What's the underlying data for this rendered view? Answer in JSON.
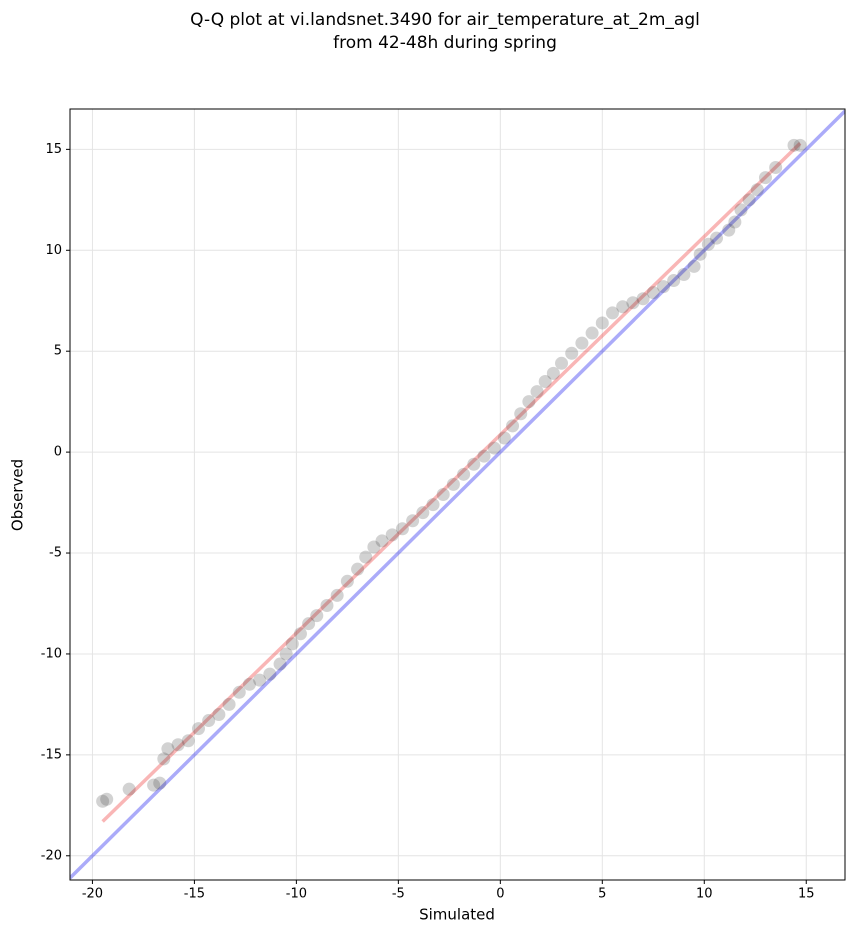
{
  "chart_data": {
    "type": "scatter",
    "title": [
      "Q-Q plot at vi.landsnet.3490 for air_temperature_at_2m_agl",
      "from 42-48h during spring"
    ],
    "x_label": "Simulated",
    "y_label": "Observed",
    "xlim": [
      -21.1,
      16.9
    ],
    "ylim": [
      -21.2,
      17.0
    ],
    "xticks": [
      -20,
      -15,
      -10,
      -5,
      0,
      5,
      10,
      15
    ],
    "yticks": [
      -20,
      -15,
      -10,
      -5,
      0,
      5,
      10,
      15
    ],
    "grid": true,
    "color": "#333333",
    "x": [
      -19.5,
      -19.3,
      -18.2,
      -17,
      -16.7,
      -16.5,
      -16.3,
      -15.8,
      -15.3,
      -14.8,
      -14.3,
      -13.8,
      -13.3,
      -12.8,
      -12.3,
      -11.8,
      -11.3,
      -10.8,
      -10.5,
      -10.2,
      -9.8,
      -9.4,
      -9.0,
      -8.5,
      -8.0,
      -7.5,
      -7.0,
      -6.6,
      -6.2,
      -5.8,
      -5.3,
      -4.8,
      -4.3,
      -3.8,
      -3.3,
      -2.8,
      -2.3,
      -1.8,
      -1.3,
      -0.8,
      -0.3,
      0.2,
      0.6,
      1.0,
      1.4,
      1.8,
      2.2,
      2.6,
      3.0,
      3.5,
      4.0,
      4.5,
      5.0,
      5.5,
      6.0,
      6.5,
      7.0,
      7.5,
      8.0,
      8.5,
      9.0,
      9.5,
      9.8,
      10.2,
      10.6,
      11.2,
      11.5,
      11.8,
      12.2,
      12.6,
      13.0,
      13.5,
      14.4,
      14.7
    ],
    "values": [
      -17.3,
      -17.2,
      -16.7,
      -16.5,
      -16.4,
      -15.2,
      -14.7,
      -14.5,
      -14.3,
      -13.7,
      -13.3,
      -13.0,
      -12.5,
      -11.9,
      -11.5,
      -11.3,
      -11.0,
      -10.5,
      -10.0,
      -9.5,
      -9.0,
      -8.5,
      -8.1,
      -7.6,
      -7.1,
      -6.4,
      -5.8,
      -5.2,
      -4.7,
      -4.4,
      -4.1,
      -3.8,
      -3.4,
      -3.0,
      -2.6,
      -2.1,
      -1.6,
      -1.1,
      -0.6,
      -0.2,
      0.2,
      0.7,
      1.3,
      1.9,
      2.5,
      3.0,
      3.5,
      3.9,
      4.4,
      4.9,
      5.4,
      5.9,
      6.4,
      6.9,
      7.2,
      7.4,
      7.6,
      7.9,
      8.2,
      8.5,
      8.8,
      9.2,
      9.8,
      10.3,
      10.6,
      11.0,
      11.4,
      12.0,
      12.5,
      13.0,
      13.6,
      14.1,
      15.2,
      15.2
    ],
    "lines": [
      {
        "color": "#0000ee",
        "x": [
          -21.1,
          16.9
        ],
        "values": [
          -21.1,
          16.9
        ]
      },
      {
        "color": "#ee2222",
        "x": [
          -19.5,
          14.7
        ],
        "values": [
          -18.3,
          15.3
        ]
      }
    ]
  }
}
